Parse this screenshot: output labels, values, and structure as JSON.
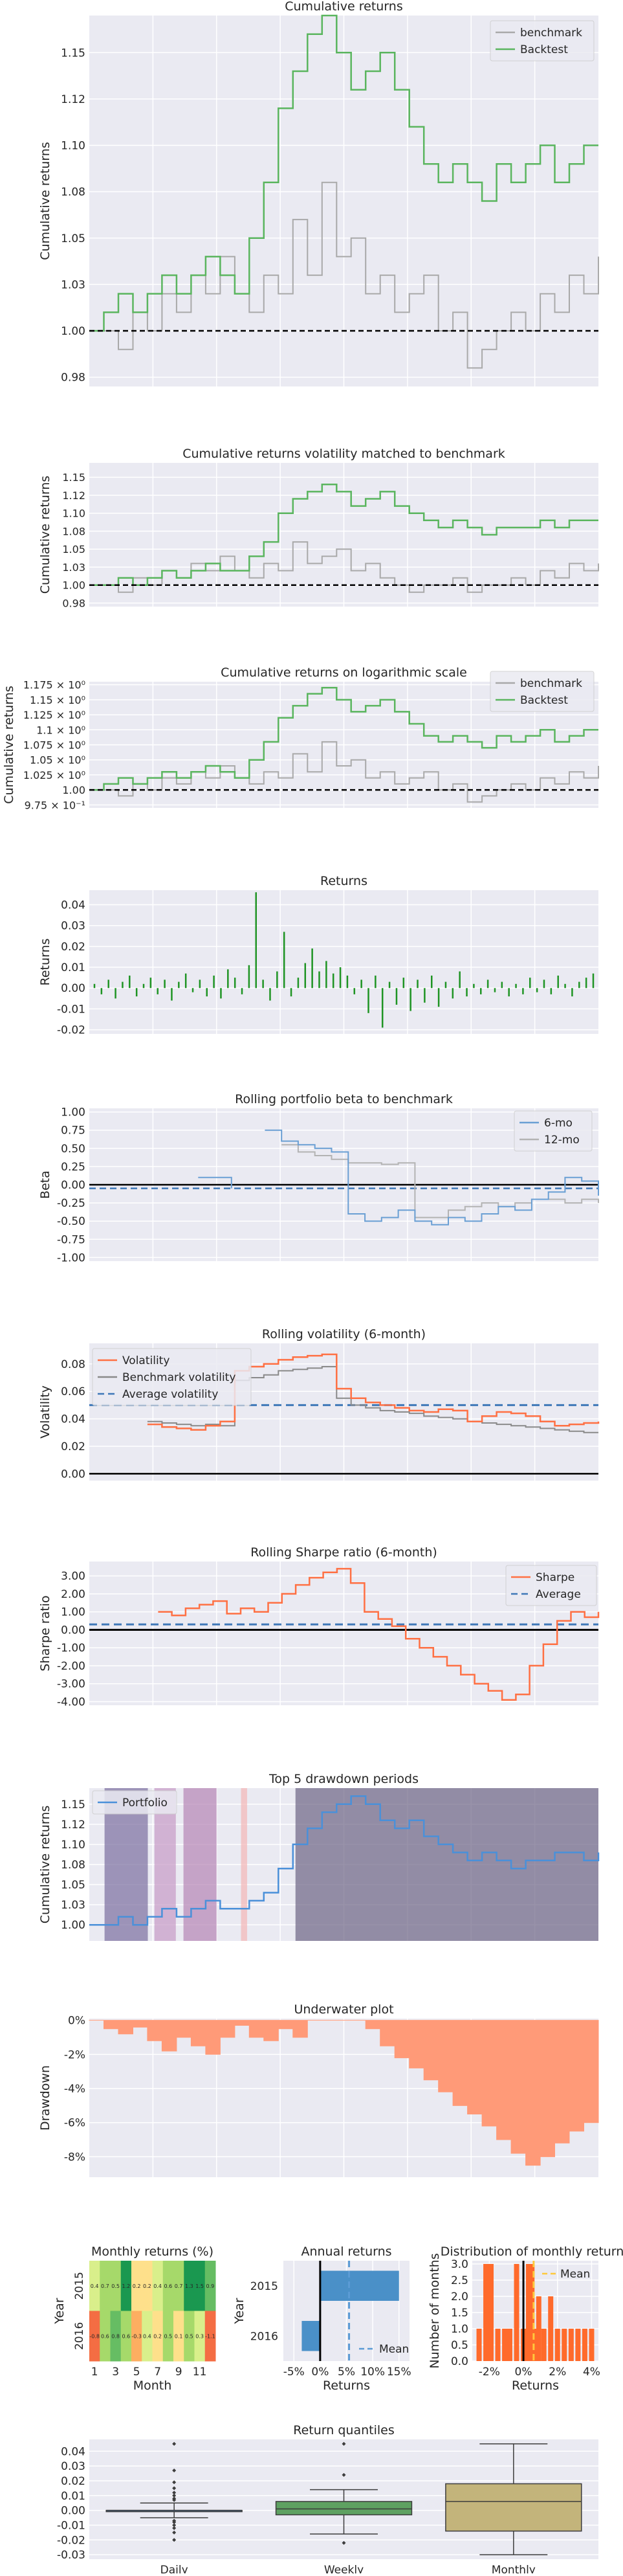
{
  "colors": {
    "plot_bg": "#eaeaf2",
    "grid": "#ffffff",
    "benchmark": "#a9a9a9",
    "backtest": "#5ab55e",
    "returns": "#1f9424",
    "beta_6mo": "#6a9fd4",
    "beta_12mo": "#b3b3b3",
    "volatility": "#ff7043",
    "avg_line": "#3f78b8",
    "sharpe": "#ff7043",
    "portfolio": "#4a90d9",
    "drawdown_fill": "#ff9a78",
    "drawdown_shades": [
      "#7a6ea0",
      "#c69ac6",
      "#b585b5",
      "#f4b7b7",
      "#6c6484"
    ],
    "annual_bar": "#4a90c8",
    "annual_mean": "#5b9bd5",
    "hist_bar": "#ff6a2b",
    "hist_mean": "#ffc93c",
    "box_daily": "#3c72b4",
    "box_weekly": "#5ea161",
    "box_monthly": "#c3b47b"
  },
  "charts": {
    "cumret": {
      "title": "Cumulative returns",
      "ylabel": "Cumulative returns",
      "yticks": [
        "1.15",
        "1.12",
        "1.10",
        "1.08",
        "1.05",
        "1.03",
        "1.00",
        "0.98"
      ],
      "legend": [
        "benchmark",
        "Backtest"
      ]
    },
    "volmatch": {
      "title": "Cumulative returns volatility matched to benchmark",
      "ylabel": "Cumulative returns",
      "yticks": [
        "1.15",
        "1.12",
        "1.10",
        "1.08",
        "1.05",
        "1.03",
        "1.00",
        "0.98"
      ]
    },
    "logscale": {
      "title": "Cumulative returns on logarithmic scale",
      "ylabel": "Cumulative returns",
      "yticks": [
        "1.175 × 10⁰",
        "1.15 × 10⁰",
        "1.125 × 10⁰",
        "1.1 × 10⁰",
        "1.075 × 10⁰",
        "1.05 × 10⁰",
        "1.025 × 10⁰",
        "1.00",
        "9.75 × 10⁻¹"
      ],
      "legend": [
        "benchmark",
        "Backtest"
      ]
    },
    "returns": {
      "title": "Returns",
      "ylabel": "Returns",
      "yticks": [
        "0.04",
        "0.03",
        "0.02",
        "0.01",
        "0.00",
        "-0.01",
        "-0.02"
      ]
    },
    "beta": {
      "title": "Rolling portfolio beta to benchmark",
      "ylabel": "Beta",
      "yticks": [
        "1.00",
        "0.75",
        "0.50",
        "0.25",
        "0.00",
        "-0.25",
        "-0.50",
        "-0.75",
        "-1.00"
      ],
      "legend": [
        "6-mo",
        "12-mo"
      ]
    },
    "vol": {
      "title": "Rolling volatility (6-month)",
      "ylabel": "Volatility",
      "yticks": [
        "0.08",
        "0.06",
        "0.04",
        "0.02",
        "0.00"
      ],
      "legend": [
        "Volatility",
        "Benchmark volatility",
        "Average volatility"
      ]
    },
    "sharpe": {
      "title": "Rolling Sharpe ratio (6-month)",
      "ylabel": "Sharpe ratio",
      "yticks": [
        "3.00",
        "2.00",
        "1.00",
        "0.00",
        "-1.00",
        "-2.00",
        "-3.00",
        "-4.00"
      ],
      "legend": [
        "Sharpe",
        "Average"
      ]
    },
    "drawdown": {
      "title": "Top 5 drawdown periods",
      "ylabel": "Cumulative returns",
      "yticks": [
        "1.15",
        "1.12",
        "1.10",
        "1.08",
        "1.05",
        "1.03",
        "1.00"
      ],
      "legend": [
        "Portfolio"
      ]
    },
    "underwater": {
      "title": "Underwater plot",
      "ylabel": "Drawdown",
      "yticks": [
        "0%",
        "-2%",
        "-4%",
        "-6%",
        "-8%"
      ]
    },
    "monthly": {
      "title": "Monthly returns (%)",
      "ylabel": "Year",
      "xlabel": "Month",
      "years": [
        "2015",
        "2016"
      ],
      "xticks": [
        "1",
        "3",
        "5",
        "7",
        "9",
        "11"
      ]
    },
    "annual": {
      "title": "Annual returns",
      "ylabel": "Year",
      "xlabel": "Returns",
      "years": [
        "2015",
        "2016"
      ],
      "xticks": [
        "-5%",
        "0%",
        "5%",
        "10%",
        "15%"
      ],
      "legend": [
        "Mean"
      ]
    },
    "dist": {
      "title": "Distribution of monthly returns",
      "ylabel": "Number of months",
      "xlabel": "Returns",
      "yticks": [
        "3.0",
        "2.5",
        "2.0",
        "1.5",
        "1.0",
        "0.5",
        "0.0"
      ],
      "xticks": [
        "-2%",
        "0%",
        "2%",
        "4%"
      ],
      "legend": [
        "Mean"
      ]
    },
    "quantiles": {
      "title": "Return quantiles",
      "yticks": [
        "0.04",
        "0.03",
        "0.02",
        "0.01",
        "0.00",
        "-0.01",
        "-0.02",
        "-0.03"
      ],
      "xticks": [
        "Daily",
        "Weekly",
        "Monthly"
      ]
    }
  },
  "chart_data": [
    {
      "type": "line",
      "title": "Cumulative returns",
      "ylabel": "Cumulative returns",
      "ylim": [
        0.97,
        1.17
      ],
      "x_range": [
        0,
        1
      ],
      "series": [
        {
          "name": "benchmark",
          "values": [
            1.0,
            1.0,
            0.99,
            1.01,
            1.0,
            1.02,
            1.01,
            1.03,
            1.02,
            1.04,
            1.02,
            1.01,
            1.03,
            1.02,
            1.06,
            1.03,
            1.08,
            1.04,
            1.05,
            1.02,
            1.03,
            1.01,
            1.02,
            1.03,
            1.0,
            1.01,
            0.98,
            0.99,
            1.0,
            1.01,
            1.0,
            1.02,
            1.01,
            1.03,
            1.02,
            1.04
          ]
        },
        {
          "name": "Backtest",
          "values": [
            1.0,
            1.01,
            1.02,
            1.01,
            1.02,
            1.03,
            1.02,
            1.03,
            1.04,
            1.03,
            1.02,
            1.05,
            1.08,
            1.12,
            1.14,
            1.16,
            1.17,
            1.15,
            1.13,
            1.14,
            1.15,
            1.13,
            1.11,
            1.09,
            1.08,
            1.09,
            1.08,
            1.07,
            1.09,
            1.08,
            1.09,
            1.1,
            1.08,
            1.09,
            1.1,
            1.1
          ]
        }
      ]
    },
    {
      "type": "line",
      "title": "Cumulative returns volatility matched to benchmark",
      "ylabel": "Cumulative returns",
      "ylim": [
        0.97,
        1.17
      ],
      "series": [
        {
          "values": [
            1.0,
            1.0,
            0.99,
            1.01,
            1.0,
            1.02,
            1.01,
            1.03,
            1.02,
            1.04,
            1.02,
            1.01,
            1.03,
            1.02,
            1.06,
            1.03,
            1.04,
            1.05,
            1.02,
            1.03,
            1.01,
            1.0,
            0.99,
            1.0,
            1.0,
            1.01,
            0.99,
            1.0,
            1.0,
            1.01,
            1.0,
            1.02,
            1.01,
            1.03,
            1.02,
            1.03
          ]
        },
        {
          "values": [
            1.0,
            1.0,
            1.01,
            1.0,
            1.01,
            1.02,
            1.01,
            1.02,
            1.03,
            1.02,
            1.02,
            1.04,
            1.06,
            1.1,
            1.12,
            1.13,
            1.14,
            1.13,
            1.11,
            1.12,
            1.13,
            1.11,
            1.1,
            1.09,
            1.08,
            1.09,
            1.08,
            1.07,
            1.08,
            1.08,
            1.08,
            1.09,
            1.08,
            1.09,
            1.09,
            1.09
          ]
        }
      ]
    },
    {
      "type": "line",
      "title": "Cumulative returns on logarithmic scale",
      "ylabel": "Cumulative returns",
      "log_scale": true,
      "ylim": [
        0.97,
        1.18
      ],
      "series": [
        {
          "name": "benchmark",
          "values": [
            1.0,
            1.0,
            0.99,
            1.01,
            1.0,
            1.02,
            1.01,
            1.03,
            1.02,
            1.04,
            1.02,
            1.01,
            1.03,
            1.02,
            1.06,
            1.03,
            1.08,
            1.04,
            1.05,
            1.02,
            1.03,
            1.01,
            1.02,
            1.03,
            1.0,
            1.01,
            0.98,
            0.99,
            1.0,
            1.01,
            1.0,
            1.02,
            1.01,
            1.03,
            1.02,
            1.04
          ]
        },
        {
          "name": "Backtest",
          "values": [
            1.0,
            1.01,
            1.02,
            1.01,
            1.02,
            1.03,
            1.02,
            1.03,
            1.04,
            1.03,
            1.02,
            1.05,
            1.08,
            1.12,
            1.14,
            1.16,
            1.17,
            1.15,
            1.13,
            1.14,
            1.15,
            1.13,
            1.11,
            1.09,
            1.08,
            1.09,
            1.08,
            1.07,
            1.09,
            1.08,
            1.09,
            1.1,
            1.08,
            1.09,
            1.1,
            1.1
          ]
        }
      ]
    },
    {
      "type": "bar",
      "title": "Returns",
      "ylabel": "Returns",
      "ylim": [
        -0.022,
        0.047
      ],
      "values": [
        0.002,
        -0.003,
        0.004,
        -0.005,
        0.003,
        0.006,
        -0.004,
        0.002,
        0.005,
        -0.003,
        0.004,
        -0.006,
        0.003,
        0.007,
        -0.002,
        0.004,
        -0.004,
        0.006,
        -0.005,
        0.009,
        0.005,
        -0.003,
        0.011,
        0.046,
        0.004,
        -0.006,
        0.008,
        0.027,
        -0.004,
        0.005,
        0.012,
        0.019,
        0.008,
        0.013,
        0.007,
        0.01,
        0.006,
        -0.003,
        0.004,
        -0.012,
        0.006,
        -0.019,
        0.003,
        -0.008,
        0.005,
        -0.011,
        0.004,
        -0.007,
        0.006,
        -0.009,
        0.003,
        -0.005,
        0.008,
        -0.004,
        0.002,
        -0.003,
        0.004,
        -0.002,
        0.003,
        -0.004,
        0.002,
        -0.003,
        0.005,
        -0.002,
        0.004,
        -0.003,
        0.006,
        0.002,
        -0.004,
        0.003,
        0.005,
        0.007
      ]
    },
    {
      "type": "line",
      "title": "Rolling portfolio beta to benchmark",
      "ylabel": "Beta",
      "ylim": [
        -1.0,
        1.0
      ],
      "series": [
        {
          "name": "6-mo",
          "values": [
            null,
            null,
            null,
            null,
            null,
            0.1,
            0.1,
            -0.05,
            null,
            0.75,
            0.6,
            0.55,
            0.5,
            0.45,
            -0.4,
            -0.5,
            -0.45,
            -0.35,
            -0.5,
            -0.55,
            -0.45,
            -0.5,
            -0.4,
            -0.3,
            -0.35,
            -0.2,
            -0.1,
            0.1,
            0.05,
            -0.15
          ]
        },
        {
          "name": "12-mo",
          "values": [
            null,
            null,
            null,
            null,
            null,
            null,
            null,
            null,
            null,
            null,
            0.55,
            0.45,
            0.4,
            0.35,
            0.3,
            0.3,
            0.28,
            0.3,
            -0.45,
            -0.45,
            -0.35,
            -0.3,
            -0.25,
            -0.3,
            -0.25,
            -0.2,
            -0.2,
            -0.25,
            -0.2,
            -0.25
          ]
        }
      ]
    },
    {
      "type": "line",
      "title": "Rolling volatility (6-month)",
      "ylabel": "Volatility",
      "ylim": [
        -0.005,
        0.095
      ],
      "series": [
        {
          "name": "Volatility",
          "values": [
            null,
            null,
            null,
            null,
            0.036,
            0.034,
            0.033,
            0.032,
            0.035,
            0.038,
            0.075,
            0.078,
            0.08,
            0.083,
            0.085,
            0.086,
            0.087,
            0.062,
            0.055,
            0.052,
            0.05,
            0.048,
            0.046,
            0.045,
            0.047,
            0.046,
            0.038,
            0.042,
            0.045,
            0.044,
            0.042,
            0.038,
            0.035,
            0.036,
            0.037,
            0.038
          ]
        },
        {
          "name": "Benchmark volatility",
          "values": [
            null,
            null,
            null,
            null,
            0.038,
            0.037,
            0.036,
            0.035,
            0.036,
            0.035,
            0.068,
            0.07,
            0.072,
            0.075,
            0.076,
            0.077,
            0.078,
            0.055,
            0.05,
            0.048,
            0.046,
            0.045,
            0.044,
            0.042,
            0.041,
            0.04,
            0.038,
            0.037,
            0.036,
            0.035,
            0.034,
            0.033,
            0.032,
            0.031,
            0.03,
            0.03
          ]
        },
        {
          "name": "Average volatility",
          "values": [
            0.05,
            0.05
          ]
        }
      ]
    },
    {
      "type": "line",
      "title": "Rolling Sharpe ratio (6-month)",
      "ylabel": "Sharpe ratio",
      "ylim": [
        -4.2,
        3.8
      ],
      "series": [
        {
          "name": "Sharpe",
          "values": [
            null,
            null,
            null,
            null,
            null,
            1.0,
            0.8,
            1.2,
            1.4,
            1.6,
            0.9,
            1.2,
            1.0,
            1.5,
            2.0,
            2.5,
            2.9,
            3.2,
            3.4,
            2.6,
            1.0,
            0.6,
            0.2,
            -0.5,
            -1.0,
            -1.5,
            -2.0,
            -2.5,
            -3.0,
            -3.4,
            -3.9,
            -3.6,
            -2.0,
            -0.8,
            0.5,
            1.0,
            0.7,
            1.0
          ]
        },
        {
          "name": "Average",
          "values": [
            0.3,
            0.3
          ]
        }
      ]
    },
    {
      "type": "line",
      "title": "Top 5 drawdown periods",
      "ylabel": "Cumulative returns",
      "ylim": [
        0.98,
        1.17
      ],
      "series": [
        {
          "name": "Portfolio",
          "values": [
            1.0,
            1.0,
            1.01,
            1.0,
            1.01,
            1.02,
            1.01,
            1.02,
            1.03,
            1.02,
            1.02,
            1.03,
            1.04,
            1.07,
            1.1,
            1.12,
            1.14,
            1.15,
            1.16,
            1.15,
            1.13,
            1.12,
            1.13,
            1.11,
            1.1,
            1.09,
            1.08,
            1.09,
            1.08,
            1.07,
            1.08,
            1.08,
            1.09,
            1.09,
            1.08,
            1.09
          ]
        }
      ]
    },
    {
      "type": "area",
      "title": "Underwater plot",
      "ylabel": "Drawdown",
      "ylim": [
        -0.09,
        0.0
      ],
      "values": [
        0,
        -0.005,
        -0.008,
        -0.004,
        -0.012,
        -0.018,
        -0.01,
        -0.015,
        -0.02,
        -0.01,
        -0.003,
        -0.01,
        -0.012,
        -0.005,
        -0.01,
        0,
        0,
        0,
        0,
        -0.005,
        -0.015,
        -0.022,
        -0.028,
        -0.035,
        -0.042,
        -0.05,
        -0.055,
        -0.062,
        -0.07,
        -0.078,
        -0.085,
        -0.08,
        -0.072,
        -0.065,
        -0.06,
        -0.05
      ]
    },
    {
      "type": "heatmap",
      "title": "Monthly returns (%)",
      "ylabel": "Year",
      "xlabel": "Month",
      "years": [
        "2015",
        "2016"
      ],
      "rows": [
        [
          0.4,
          0.7,
          0.5,
          1.2,
          0.2,
          0.2,
          0.4,
          0.6,
          0.7,
          1.3,
          1.5,
          0.9
        ],
        [
          -0.8,
          0.6,
          0.8,
          0.6,
          -0.3,
          0.4,
          0.2,
          0.5,
          0.1,
          0.5,
          0.3,
          -1.1
        ]
      ]
    },
    {
      "type": "bar",
      "title": "Annual returns",
      "ylabel": "Year",
      "xlabel": "Returns",
      "categories": [
        "2015",
        "2016"
      ],
      "values": [
        15.0,
        -3.5
      ],
      "mean": 5.5,
      "xlim": [
        -7,
        17
      ]
    },
    {
      "type": "bar",
      "title": "Distribution of monthly returns",
      "ylabel": "Number of months",
      "xlabel": "Returns",
      "bin_centers": [
        -2.6,
        -2.2,
        -1.9,
        -1.5,
        -1.1,
        -0.8,
        -0.4,
        0.0,
        0.3,
        0.5,
        0.7,
        0.9,
        1.2,
        1.6,
        2.0,
        2.4,
        2.8,
        3.2,
        3.6,
        4.0
      ],
      "values": [
        1,
        3,
        3,
        1,
        1,
        1,
        3,
        1,
        3,
        3,
        1,
        2,
        1,
        2,
        1,
        1,
        1,
        1,
        1,
        1
      ],
      "mean": 0.6,
      "ylim": [
        0,
        3.1
      ]
    },
    {
      "type": "box",
      "title": "Return quantiles",
      "categories": [
        "Daily",
        "Weekly",
        "Monthly"
      ],
      "boxes": [
        {
          "min": -0.005,
          "q1": 0.0,
          "median": 0.0,
          "q3": 0.0,
          "max": 0.005,
          "outliers": [
            -0.02,
            -0.015,
            -0.012,
            -0.01,
            -0.008,
            -0.007,
            0.007,
            0.008,
            0.01,
            0.012,
            0.015,
            0.045,
            0.027,
            0.019
          ]
        },
        {
          "min": -0.016,
          "q1": -0.003,
          "median": 0.001,
          "q3": 0.006,
          "max": 0.014,
          "outliers": [
            -0.022,
            0.024,
            0.045
          ]
        },
        {
          "min": -0.03,
          "q1": -0.014,
          "median": 0.006,
          "q3": 0.018,
          "max": 0.045,
          "outliers": []
        }
      ],
      "ylim": [
        -0.033,
        0.048
      ]
    }
  ]
}
